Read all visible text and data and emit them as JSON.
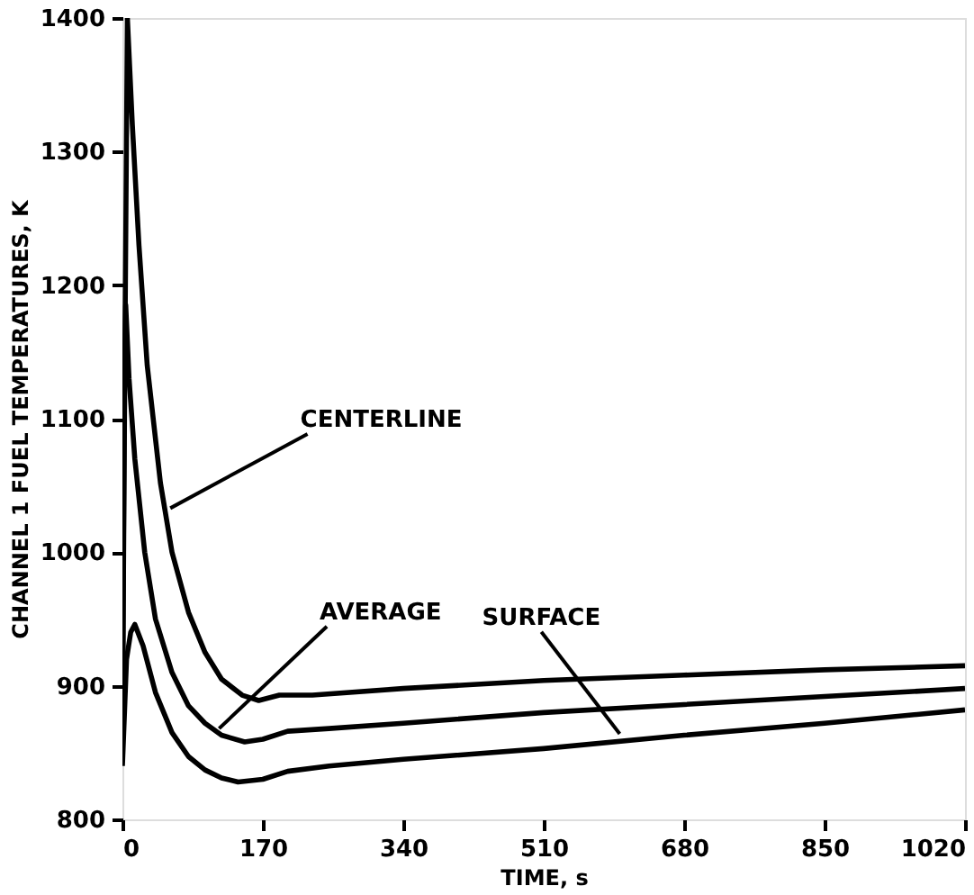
{
  "chart_data": {
    "type": "line",
    "xlabel": "TIME,  s",
    "ylabel": "CHANNEL 1 FUEL TEMPERATURES, K",
    "xlim": [
      0,
      1020
    ],
    "xticks": [
      0,
      170,
      340,
      510,
      680,
      850,
      1020
    ],
    "ylim": [
      800,
      1400
    ],
    "yticks": [
      800,
      900,
      1000,
      1100,
      1200,
      1300,
      1400
    ],
    "grid": false,
    "marker": "none",
    "line_style": "solid",
    "series": [
      {
        "color": "#000000",
        "x": [
          0,
          3,
          6,
          12,
          20,
          30,
          46,
          60,
          80,
          100,
          120,
          145,
          165,
          190,
          230,
          340,
          510,
          680,
          850,
          1020
        ],
        "values": [
          860,
          1150,
          1400,
          1320,
          1230,
          1140,
          1052,
          1000,
          955,
          925,
          905,
          893,
          889,
          893,
          893,
          898,
          904,
          908,
          912,
          915
        ]
      },
      {
        "color": "#000000",
        "x": [
          0,
          2,
          4,
          8,
          15,
          27,
          40,
          60,
          80,
          100,
          120,
          148,
          170,
          200,
          250,
          340,
          510,
          680,
          850,
          1020
        ],
        "values": [
          850,
          1100,
          1185,
          1130,
          1070,
          1000,
          950,
          910,
          885,
          872,
          863,
          858,
          860,
          866,
          868,
          872,
          880,
          886,
          892,
          898
        ]
      },
      {
        "color": "#000000",
        "x": [
          0,
          5,
          10,
          15,
          25,
          40,
          60,
          80,
          100,
          120,
          140,
          170,
          200,
          250,
          340,
          510,
          680,
          850,
          1020
        ],
        "values": [
          840,
          920,
          940,
          946,
          930,
          895,
          865,
          847,
          837,
          831,
          828,
          830,
          836,
          840,
          845,
          853,
          863,
          872,
          882
        ]
      }
    ],
    "annotations": [
      {
        "text": "CENTERLINE",
        "x": 58,
        "y": 1033
      },
      {
        "text": "AVERAGE",
        "x": 117,
        "y": 868
      },
      {
        "text": "SURFACE",
        "x": 602,
        "y": 864
      }
    ]
  }
}
